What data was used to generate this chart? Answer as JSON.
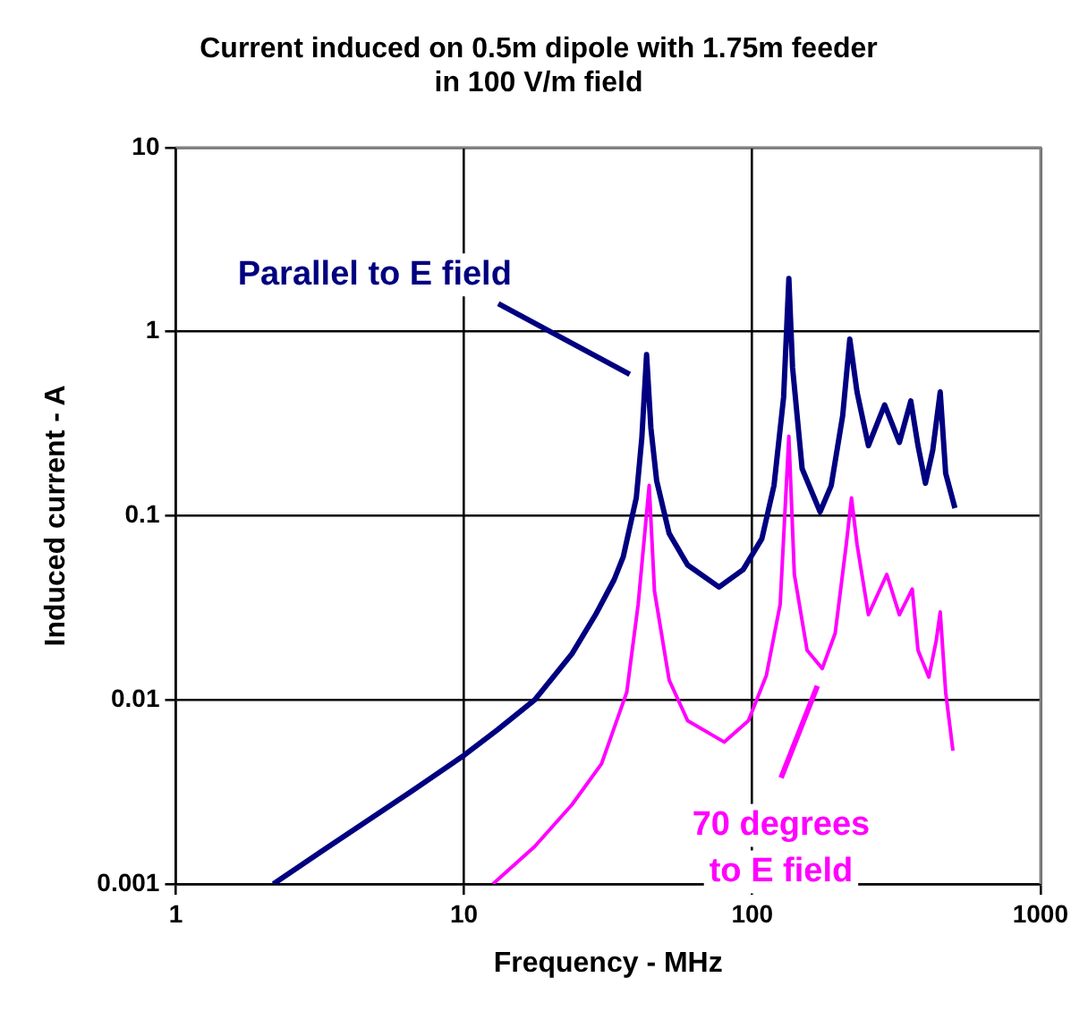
{
  "chart_data": {
    "type": "line",
    "title": "Current induced on 0.5m dipole with 1.75m feeder in 100 V/m field",
    "xlabel": "Frequency - MHz",
    "ylabel": "Induced current - A",
    "log": "xy",
    "grid": true,
    "xlim": [
      1,
      1000
    ],
    "xticks": [
      1,
      10,
      100,
      1000
    ],
    "ylim": [
      0.001,
      10
    ],
    "yticks": [
      0.001,
      0.01,
      0.1,
      1,
      10
    ],
    "series": [
      {
        "name": "Parallel to E field",
        "color": "#000080",
        "x": [
          2.18,
          3.3,
          6.6,
          10,
          13.1,
          17.6,
          23.7,
          28.6,
          33.2,
          35.7,
          39.6,
          41.4,
          43,
          44.5,
          46.6,
          51.5,
          59.7,
          76.7,
          93,
          108,
          119,
          128.5,
          134,
          138,
          149,
          172,
          188,
          206,
          218,
          231,
          253,
          288,
          324,
          355,
          376,
          399,
          423,
          449,
          469,
          505
        ],
        "values": [
          0.001,
          0.00155,
          0.0032,
          0.005,
          0.0069,
          0.01,
          0.0178,
          0.029,
          0.045,
          0.06,
          0.125,
          0.265,
          0.75,
          0.3,
          0.155,
          0.08,
          0.054,
          0.041,
          0.051,
          0.075,
          0.146,
          0.44,
          1.94,
          0.64,
          0.18,
          0.105,
          0.146,
          0.35,
          0.91,
          0.47,
          0.24,
          0.4,
          0.25,
          0.42,
          0.24,
          0.15,
          0.227,
          0.47,
          0.17,
          0.11
        ]
      },
      {
        "name": "70 degrees to E field",
        "color": "#ff00ff",
        "x": [
          12.6,
          17.6,
          23.7,
          30,
          36.7,
          40.2,
          43.9,
          45.8,
          51.5,
          59.7,
          80,
          97,
          112,
          125,
          134,
          140,
          155,
          175,
          194,
          212,
          221,
          231,
          253,
          293,
          324,
          359,
          376,
          410,
          435,
          449,
          469,
          497
        ],
        "values": [
          0.001,
          0.0016,
          0.0027,
          0.0045,
          0.011,
          0.033,
          0.146,
          0.039,
          0.0128,
          0.0077,
          0.0059,
          0.0077,
          0.0136,
          0.033,
          0.27,
          0.048,
          0.0186,
          0.0148,
          0.023,
          0.07,
          0.125,
          0.07,
          0.029,
          0.048,
          0.029,
          0.04,
          0.0186,
          0.0133,
          0.021,
          0.03,
          0.011,
          0.0053
        ]
      }
    ]
  }
}
